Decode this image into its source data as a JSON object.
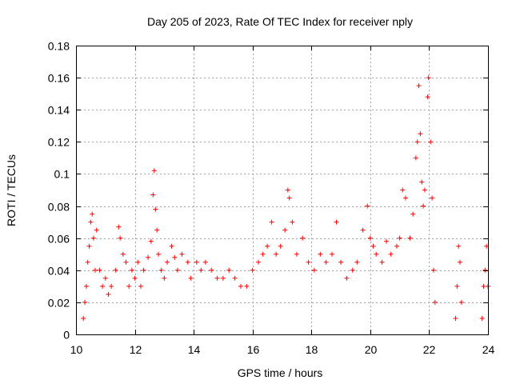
{
  "chart_data": {
    "type": "scatter",
    "title": "Day 205 of 2023, Rate Of TEC Index for receiver nply",
    "xlabel": "GPS time / hours",
    "ylabel": "ROTI / TECUs",
    "xlim": [
      10,
      24
    ],
    "ylim": [
      0,
      0.18
    ],
    "x_ticks": [
      "10",
      "12",
      "14",
      "16",
      "18",
      "20",
      "22",
      "24"
    ],
    "y_ticks": [
      "0",
      "0.02",
      "0.04",
      "0.06",
      "0.08",
      "0.1",
      "0.12",
      "0.14",
      "0.16",
      "0.18"
    ],
    "grid": true,
    "marker": "plus",
    "color": "#ff0000",
    "series": [
      {
        "points": [
          [
            10.25,
            0.01
          ],
          [
            10.3,
            0.02
          ],
          [
            10.35,
            0.03
          ],
          [
            10.4,
            0.045
          ],
          [
            10.45,
            0.055
          ],
          [
            10.5,
            0.07
          ],
          [
            10.55,
            0.075
          ],
          [
            10.6,
            0.06
          ],
          [
            10.65,
            0.04
          ],
          [
            10.7,
            0.065
          ],
          [
            10.8,
            0.04
          ],
          [
            10.9,
            0.03
          ],
          [
            11.0,
            0.035
          ],
          [
            11.1,
            0.025
          ],
          [
            11.2,
            0.03
          ],
          [
            11.35,
            0.04
          ],
          [
            11.45,
            0.067
          ],
          [
            11.5,
            0.06
          ],
          [
            11.6,
            0.05
          ],
          [
            11.7,
            0.045
          ],
          [
            11.8,
            0.03
          ],
          [
            11.9,
            0.04
          ],
          [
            12.0,
            0.035
          ],
          [
            12.1,
            0.045
          ],
          [
            12.2,
            0.03
          ],
          [
            12.3,
            0.04
          ],
          [
            12.45,
            0.048
          ],
          [
            12.55,
            0.058
          ],
          [
            12.62,
            0.087
          ],
          [
            12.66,
            0.102
          ],
          [
            12.7,
            0.078
          ],
          [
            12.75,
            0.065
          ],
          [
            12.8,
            0.05
          ],
          [
            12.9,
            0.04
          ],
          [
            13.0,
            0.035
          ],
          [
            13.1,
            0.045
          ],
          [
            13.25,
            0.055
          ],
          [
            13.35,
            0.048
          ],
          [
            13.45,
            0.04
          ],
          [
            13.6,
            0.05
          ],
          [
            13.8,
            0.045
          ],
          [
            13.9,
            0.035
          ],
          [
            14.1,
            0.045
          ],
          [
            14.25,
            0.04
          ],
          [
            14.4,
            0.045
          ],
          [
            14.6,
            0.04
          ],
          [
            14.8,
            0.035
          ],
          [
            15.0,
            0.035
          ],
          [
            15.2,
            0.04
          ],
          [
            15.4,
            0.035
          ],
          [
            15.6,
            0.03
          ],
          [
            15.8,
            0.03
          ],
          [
            16.0,
            0.04
          ],
          [
            16.2,
            0.045
          ],
          [
            16.35,
            0.05
          ],
          [
            16.5,
            0.055
          ],
          [
            16.65,
            0.07
          ],
          [
            16.8,
            0.05
          ],
          [
            16.95,
            0.055
          ],
          [
            17.1,
            0.065
          ],
          [
            17.2,
            0.09
          ],
          [
            17.25,
            0.085
          ],
          [
            17.35,
            0.07
          ],
          [
            17.5,
            0.05
          ],
          [
            17.7,
            0.06
          ],
          [
            17.9,
            0.045
          ],
          [
            18.1,
            0.04
          ],
          [
            18.3,
            0.05
          ],
          [
            18.5,
            0.045
          ],
          [
            18.7,
            0.05
          ],
          [
            18.85,
            0.07
          ],
          [
            19.0,
            0.045
          ],
          [
            19.2,
            0.035
          ],
          [
            19.4,
            0.04
          ],
          [
            19.55,
            0.045
          ],
          [
            19.75,
            0.065
          ],
          [
            19.9,
            0.08
          ],
          [
            20.0,
            0.06
          ],
          [
            20.1,
            0.055
          ],
          [
            20.2,
            0.05
          ],
          [
            20.4,
            0.045
          ],
          [
            20.55,
            0.058
          ],
          [
            20.7,
            0.05
          ],
          [
            20.9,
            0.055
          ],
          [
            21.0,
            0.06
          ],
          [
            21.1,
            0.09
          ],
          [
            21.2,
            0.085
          ],
          [
            21.35,
            0.06
          ],
          [
            21.45,
            0.075
          ],
          [
            21.55,
            0.11
          ],
          [
            21.6,
            0.12
          ],
          [
            21.65,
            0.155
          ],
          [
            21.7,
            0.125
          ],
          [
            21.75,
            0.095
          ],
          [
            21.8,
            0.08
          ],
          [
            21.85,
            0.09
          ],
          [
            21.95,
            0.148
          ],
          [
            21.98,
            0.16
          ],
          [
            22.05,
            0.12
          ],
          [
            22.1,
            0.085
          ],
          [
            22.15,
            0.04
          ],
          [
            22.2,
            0.02
          ],
          [
            22.9,
            0.01
          ],
          [
            22.95,
            0.03
          ],
          [
            23.0,
            0.055
          ],
          [
            23.05,
            0.045
          ],
          [
            23.1,
            0.02
          ],
          [
            23.8,
            0.01
          ],
          [
            23.85,
            0.03
          ],
          [
            23.9,
            0.04
          ],
          [
            23.95,
            0.055
          ],
          [
            24.0,
            0.03
          ]
        ]
      }
    ]
  }
}
